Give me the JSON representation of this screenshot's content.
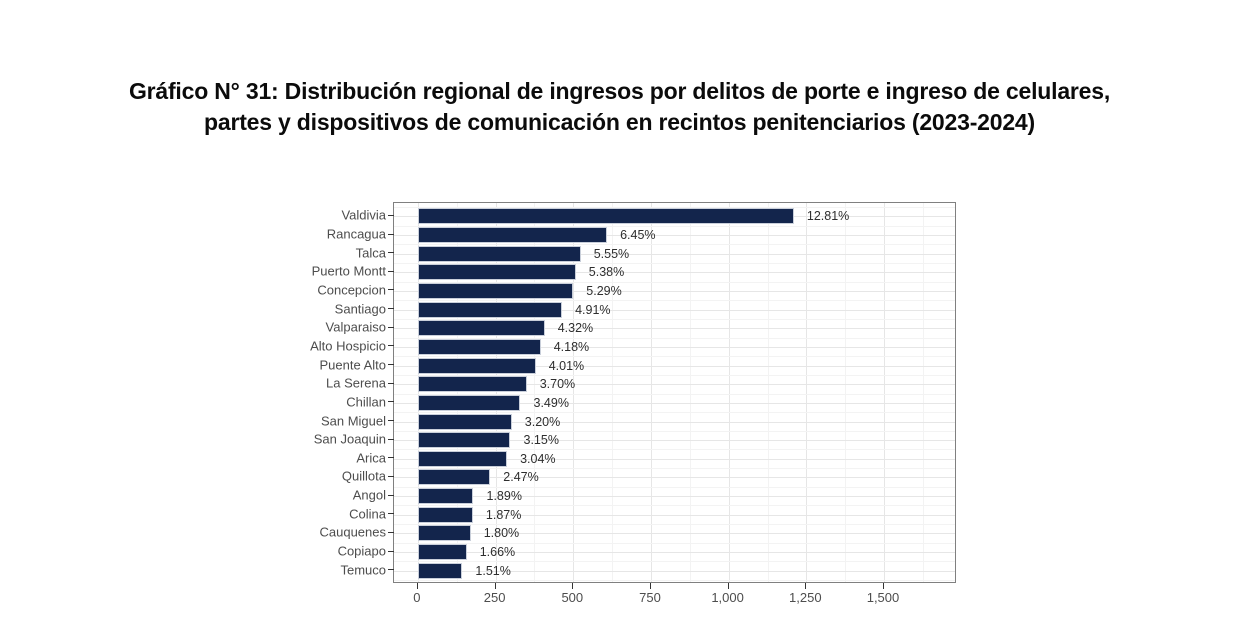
{
  "page": {
    "background": "#ffffff"
  },
  "title_lines": [
    "Gráfico N° 31: Distribución regional de ingresos por delitos de porte e ingreso de celulares,",
    "partes y dispositivos de comunicación en recintos penitenciarios (2023-2024)"
  ],
  "chart_data": {
    "type": "bar",
    "orientation": "horizontal",
    "title": "Gráfico N° 31: Distribución regional de ingresos por delitos de porte e ingreso de celulares, partes y dispositivos de comunicación en recintos penitenciarios (2023-2024)",
    "categories": [
      "Valdivia",
      "Rancagua",
      "Talca",
      "Puerto Montt",
      "Concepcion",
      "Santiago",
      "Valparaiso",
      "Alto Hospicio",
      "Puente Alto",
      "La Serena",
      "Chillan",
      "San Miguel",
      "San Joaquin",
      "Arica",
      "Quillota",
      "Angol",
      "Colina",
      "Cauquenes",
      "Copiapo",
      "Temuco"
    ],
    "percent_labels": [
      "12.81%",
      "6.45%",
      "5.55%",
      "5.38%",
      "5.29%",
      "4.91%",
      "4.32%",
      "4.18%",
      "4.01%",
      "3.70%",
      "3.49%",
      "3.20%",
      "3.15%",
      "3.04%",
      "2.47%",
      "1.89%",
      "1.87%",
      "1.80%",
      "1.66%",
      "1.51%"
    ],
    "percents": [
      12.81,
      6.45,
      5.55,
      5.38,
      5.29,
      4.91,
      4.32,
      4.18,
      4.01,
      3.7,
      3.49,
      3.2,
      3.15,
      3.04,
      2.47,
      1.89,
      1.87,
      1.8,
      1.66,
      1.51
    ],
    "values": [
      1210,
      609,
      524,
      508,
      500,
      464,
      408,
      395,
      379,
      350,
      330,
      302,
      298,
      287,
      233,
      179,
      177,
      170,
      157,
      143
    ],
    "xlabel": "",
    "ylabel": "",
    "x_tick_labels": [
      "0",
      "250",
      "500",
      "750",
      "1,000",
      "1,250",
      "1,500"
    ],
    "x_tick_values": [
      0,
      250,
      500,
      750,
      1000,
      1250,
      1500
    ],
    "x_minor_tick_values": [
      125,
      375,
      625,
      875,
      1125,
      1375,
      1625
    ],
    "xlim": [
      -77,
      1735
    ],
    "grid": "major-and-minor",
    "legend": "none",
    "colors": {
      "bar_fill": "#13254c",
      "bar_border": "#c9cfda",
      "grid_major": "#e6e6e6",
      "grid_minor": "#f3f3f3",
      "panel_border": "#808080",
      "axis_text": "#4d4d4d",
      "value_label_text": "#2e2e2e",
      "title_text": "#0b0b0b"
    }
  }
}
